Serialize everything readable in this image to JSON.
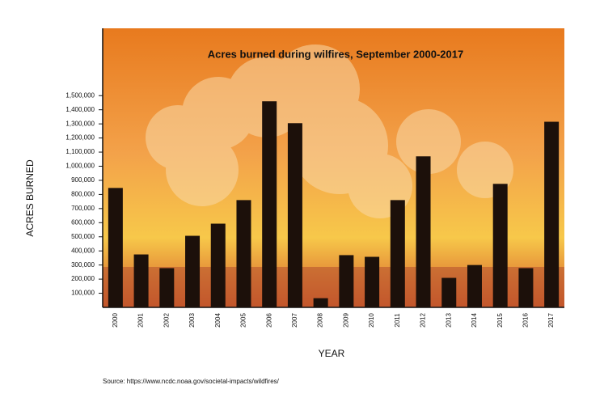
{
  "chart_data": {
    "type": "bar",
    "title": "Acres burned during wilfires, September 2000-2017",
    "x_label": "YEAR",
    "y_label": "ACRES BURNED",
    "source": "Source: https://www.ncdc.noaa.gov/societal-impacts/wildfires/",
    "categories": [
      "2000",
      "2001",
      "2002",
      "2003",
      "2004",
      "2005",
      "2006",
      "2007",
      "2008",
      "2009",
      "2010",
      "2011",
      "2012",
      "2013",
      "2014",
      "2015",
      "2016",
      "2017"
    ],
    "values": [
      846000,
      375000,
      278000,
      507000,
      593000,
      760000,
      1460000,
      1305000,
      65000,
      370000,
      358000,
      760000,
      1070000,
      209000,
      300000,
      875000,
      278000,
      1315000
    ],
    "color": "#1c100a",
    "ylim": [
      0,
      2000000
    ],
    "yticks": [
      {
        "value": 100000,
        "label": "100,000"
      },
      {
        "value": 200000,
        "label": "200,000"
      },
      {
        "value": 300000,
        "label": "300,000"
      },
      {
        "value": 400000,
        "label": "400,000"
      },
      {
        "value": 500000,
        "label": "500,000"
      },
      {
        "value": 600000,
        "label": "600,000"
      },
      {
        "value": 700000,
        "label": "700,000"
      },
      {
        "value": 800000,
        "label": "800,000"
      },
      {
        "value": 900000,
        "label": "900,000"
      },
      {
        "value": 1000000,
        "label": "1,000,000"
      },
      {
        "value": 1100000,
        "label": "1,100,000"
      },
      {
        "value": 1200000,
        "label": "1,200,000"
      },
      {
        "value": 1300000,
        "label": "1,300,000"
      },
      {
        "value": 1400000,
        "label": "1,400,000"
      },
      {
        "value": 1500000,
        "label": "1,500,000"
      }
    ]
  }
}
